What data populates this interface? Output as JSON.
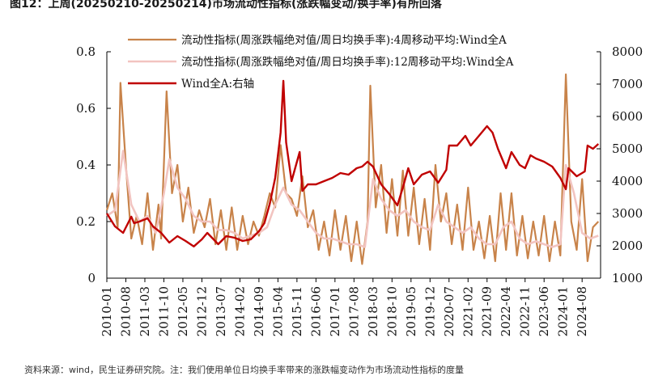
{
  "title": "图12：上周(20250210-20250214)市场流动性指标(涨跌幅变动/换手率)有所回落",
  "source": "资料来源：wind，民生证券研究院。注：我们使用单位日均换手率带来的涨跌幅变动作为市场流动性指标的度量",
  "chart_data": {
    "type": "line",
    "x_tick_labels": [
      "2010-01",
      "2010-08",
      "2011-03",
      "2011-10",
      "2012-05",
      "2012-12",
      "2013-07",
      "2014-02",
      "2014-09",
      "2015-04",
      "2015-11",
      "2016-06",
      "2017-01",
      "2017-08",
      "2018-03",
      "2018-10",
      "2019-05",
      "2019-12",
      "2020-07",
      "2021-02",
      "2021-09",
      "2022-04",
      "2022-11",
      "2023-06",
      "2024-01",
      "2024-08"
    ],
    "left_axis": {
      "ticks": [
        "0",
        "0.2",
        "0.4",
        "0.6",
        "0.8"
      ],
      "ylim": [
        0,
        0.8
      ]
    },
    "right_axis": {
      "ticks": [
        "1000",
        "2000",
        "3000",
        "4000",
        "5000",
        "6000",
        "7000",
        "8000"
      ],
      "ylim": [
        1000,
        8000
      ]
    },
    "legend_position": "top-left",
    "colors": {
      "s4": "#C8834A",
      "s12": "#F2C4C0",
      "wind": "#C00000"
    },
    "series": [
      {
        "name": "流动性指标(周涨跌幅绝对值/周日均换手率):4周移动平均:Wind全A",
        "axis": "left",
        "points": [
          [
            "2010-01",
            0.24
          ],
          [
            "2010-03",
            0.3
          ],
          [
            "2010-05",
            0.18
          ],
          [
            "2010-06",
            0.69
          ],
          [
            "2010-08",
            0.4
          ],
          [
            "2010-10",
            0.14
          ],
          [
            "2010-12",
            0.22
          ],
          [
            "2011-02",
            0.12
          ],
          [
            "2011-04",
            0.3
          ],
          [
            "2011-06",
            0.1
          ],
          [
            "2011-08",
            0.26
          ],
          [
            "2011-09",
            0.14
          ],
          [
            "2011-11",
            0.66
          ],
          [
            "2012-01",
            0.3
          ],
          [
            "2012-03",
            0.4
          ],
          [
            "2012-05",
            0.2
          ],
          [
            "2012-07",
            0.32
          ],
          [
            "2012-09",
            0.16
          ],
          [
            "2012-11",
            0.24
          ],
          [
            "2013-01",
            0.18
          ],
          [
            "2013-03",
            0.28
          ],
          [
            "2013-05",
            0.12
          ],
          [
            "2013-07",
            0.24
          ],
          [
            "2013-09",
            0.1
          ],
          [
            "2013-11",
            0.25
          ],
          [
            "2014-01",
            0.1
          ],
          [
            "2014-03",
            0.22
          ],
          [
            "2014-05",
            0.12
          ],
          [
            "2014-07",
            0.2
          ],
          [
            "2014-09",
            0.15
          ],
          [
            "2014-11",
            0.22
          ],
          [
            "2015-01",
            0.3
          ],
          [
            "2015-03",
            0.25
          ],
          [
            "2015-05",
            0.47
          ],
          [
            "2015-07",
            0.3
          ],
          [
            "2015-09",
            0.28
          ],
          [
            "2015-11",
            0.22
          ],
          [
            "2016-01",
            0.36
          ],
          [
            "2016-03",
            0.18
          ],
          [
            "2016-05",
            0.24
          ],
          [
            "2016-07",
            0.1
          ],
          [
            "2016-09",
            0.2
          ],
          [
            "2016-11",
            0.08
          ],
          [
            "2017-01",
            0.24
          ],
          [
            "2017-03",
            0.1
          ],
          [
            "2017-05",
            0.22
          ],
          [
            "2017-07",
            0.06
          ],
          [
            "2017-09",
            0.2
          ],
          [
            "2017-11",
            0.05
          ],
          [
            "2018-01",
            0.2
          ],
          [
            "2018-02",
            0.68
          ],
          [
            "2018-04",
            0.25
          ],
          [
            "2018-06",
            0.4
          ],
          [
            "2018-08",
            0.16
          ],
          [
            "2018-10",
            0.35
          ],
          [
            "2018-12",
            0.15
          ],
          [
            "2019-02",
            0.38
          ],
          [
            "2019-04",
            0.15
          ],
          [
            "2019-06",
            0.32
          ],
          [
            "2019-08",
            0.12
          ],
          [
            "2019-10",
            0.28
          ],
          [
            "2019-12",
            0.1
          ],
          [
            "2020-02",
            0.4
          ],
          [
            "2020-04",
            0.2
          ],
          [
            "2020-06",
            0.3
          ],
          [
            "2020-08",
            0.12
          ],
          [
            "2020-10",
            0.26
          ],
          [
            "2020-12",
            0.1
          ],
          [
            "2021-02",
            0.32
          ],
          [
            "2021-04",
            0.1
          ],
          [
            "2021-06",
            0.2
          ],
          [
            "2021-08",
            0.07
          ],
          [
            "2021-10",
            0.22
          ],
          [
            "2021-12",
            0.06
          ],
          [
            "2022-02",
            0.3
          ],
          [
            "2022-04",
            0.1
          ],
          [
            "2022-06",
            0.3
          ],
          [
            "2022-08",
            0.08
          ],
          [
            "2022-10",
            0.22
          ],
          [
            "2022-12",
            0.07
          ],
          [
            "2023-02",
            0.2
          ],
          [
            "2023-04",
            0.08
          ],
          [
            "2023-06",
            0.22
          ],
          [
            "2023-08",
            0.06
          ],
          [
            "2023-10",
            0.2
          ],
          [
            "2023-12",
            0.08
          ],
          [
            "2024-02",
            0.72
          ],
          [
            "2024-04",
            0.2
          ],
          [
            "2024-06",
            0.1
          ],
          [
            "2024-08",
            0.35
          ],
          [
            "2024-10",
            0.06
          ],
          [
            "2024-12",
            0.18
          ],
          [
            "2025-02",
            0.2
          ]
        ]
      },
      {
        "name": "流动性指标(周涨跌幅绝对值/周日均换手率):12周移动平均:Wind全A",
        "axis": "left",
        "points": [
          [
            "2010-01",
            0.22
          ],
          [
            "2010-04",
            0.24
          ],
          [
            "2010-07",
            0.45
          ],
          [
            "2010-10",
            0.26
          ],
          [
            "2011-01",
            0.2
          ],
          [
            "2011-04",
            0.22
          ],
          [
            "2011-07",
            0.16
          ],
          [
            "2011-10",
            0.3
          ],
          [
            "2011-12",
            0.42
          ],
          [
            "2012-03",
            0.32
          ],
          [
            "2012-06",
            0.28
          ],
          [
            "2012-09",
            0.22
          ],
          [
            "2012-12",
            0.2
          ],
          [
            "2013-03",
            0.2
          ],
          [
            "2013-06",
            0.17
          ],
          [
            "2013-09",
            0.17
          ],
          [
            "2013-12",
            0.16
          ],
          [
            "2014-03",
            0.14
          ],
          [
            "2014-06",
            0.15
          ],
          [
            "2014-09",
            0.16
          ],
          [
            "2014-12",
            0.18
          ],
          [
            "2015-03",
            0.26
          ],
          [
            "2015-06",
            0.32
          ],
          [
            "2015-09",
            0.26
          ],
          [
            "2015-12",
            0.24
          ],
          [
            "2016-03",
            0.2
          ],
          [
            "2016-06",
            0.16
          ],
          [
            "2016-09",
            0.14
          ],
          [
            "2016-12",
            0.14
          ],
          [
            "2017-03",
            0.13
          ],
          [
            "2017-06",
            0.12
          ],
          [
            "2017-09",
            0.12
          ],
          [
            "2017-12",
            0.11
          ],
          [
            "2018-03",
            0.35
          ],
          [
            "2018-06",
            0.28
          ],
          [
            "2018-09",
            0.24
          ],
          [
            "2018-12",
            0.22
          ],
          [
            "2019-03",
            0.24
          ],
          [
            "2019-06",
            0.2
          ],
          [
            "2019-09",
            0.18
          ],
          [
            "2019-12",
            0.17
          ],
          [
            "2020-03",
            0.26
          ],
          [
            "2020-06",
            0.2
          ],
          [
            "2020-09",
            0.18
          ],
          [
            "2020-12",
            0.16
          ],
          [
            "2021-03",
            0.18
          ],
          [
            "2021-06",
            0.14
          ],
          [
            "2021-09",
            0.12
          ],
          [
            "2021-12",
            0.12
          ],
          [
            "2022-03",
            0.18
          ],
          [
            "2022-06",
            0.2
          ],
          [
            "2022-09",
            0.14
          ],
          [
            "2022-12",
            0.12
          ],
          [
            "2023-03",
            0.13
          ],
          [
            "2023-06",
            0.12
          ],
          [
            "2023-09",
            0.11
          ],
          [
            "2023-12",
            0.12
          ],
          [
            "2024-02",
            0.4
          ],
          [
            "2024-05",
            0.3
          ],
          [
            "2024-08",
            0.16
          ],
          [
            "2024-11",
            0.14
          ],
          [
            "2025-02",
            0.15
          ]
        ]
      },
      {
        "name": "Wind全A:右轴",
        "axis": "right",
        "points": [
          [
            "2010-01",
            3000
          ],
          [
            "2010-04",
            2600
          ],
          [
            "2010-07",
            2400
          ],
          [
            "2010-10",
            2900
          ],
          [
            "2010-11",
            2700
          ],
          [
            "2011-01",
            2750
          ],
          [
            "2011-04",
            2850
          ],
          [
            "2011-06",
            2600
          ],
          [
            "2011-09",
            2400
          ],
          [
            "2011-12",
            2100
          ],
          [
            "2012-03",
            2300
          ],
          [
            "2012-06",
            2150
          ],
          [
            "2012-09",
            1980
          ],
          [
            "2012-12",
            2200
          ],
          [
            "2013-02",
            2400
          ],
          [
            "2013-06",
            2050
          ],
          [
            "2013-09",
            2300
          ],
          [
            "2013-12",
            2250
          ],
          [
            "2014-03",
            2150
          ],
          [
            "2014-06",
            2200
          ],
          [
            "2014-09",
            2450
          ],
          [
            "2014-11",
            2700
          ],
          [
            "2015-01",
            3300
          ],
          [
            "2015-03",
            4100
          ],
          [
            "2015-05",
            5500
          ],
          [
            "2015-06",
            7100
          ],
          [
            "2015-07",
            5200
          ],
          [
            "2015-09",
            4000
          ],
          [
            "2015-12",
            4900
          ],
          [
            "2016-01",
            3700
          ],
          [
            "2016-03",
            3900
          ],
          [
            "2016-06",
            3900
          ],
          [
            "2016-09",
            4000
          ],
          [
            "2016-12",
            4100
          ],
          [
            "2017-03",
            4250
          ],
          [
            "2017-06",
            4200
          ],
          [
            "2017-09",
            4400
          ],
          [
            "2017-11",
            4450
          ],
          [
            "2018-01",
            4600
          ],
          [
            "2018-03",
            4450
          ],
          [
            "2018-06",
            3900
          ],
          [
            "2018-09",
            3600
          ],
          [
            "2018-12",
            3250
          ],
          [
            "2019-02",
            3800
          ],
          [
            "2019-04",
            4400
          ],
          [
            "2019-06",
            3900
          ],
          [
            "2019-09",
            4200
          ],
          [
            "2019-12",
            4300
          ],
          [
            "2020-03",
            3950
          ],
          [
            "2020-06",
            4350
          ],
          [
            "2020-07",
            5100
          ],
          [
            "2020-10",
            5100
          ],
          [
            "2021-01",
            5400
          ],
          [
            "2021-03",
            5100
          ],
          [
            "2021-06",
            5400
          ],
          [
            "2021-09",
            5700
          ],
          [
            "2021-11",
            5500
          ],
          [
            "2022-01",
            5000
          ],
          [
            "2022-04",
            4400
          ],
          [
            "2022-06",
            4900
          ],
          [
            "2022-09",
            4500
          ],
          [
            "2022-11",
            4400
          ],
          [
            "2023-01",
            4800
          ],
          [
            "2023-03",
            4700
          ],
          [
            "2023-06",
            4600
          ],
          [
            "2023-09",
            4450
          ],
          [
            "2023-12",
            4100
          ],
          [
            "2024-02",
            3750
          ],
          [
            "2024-03",
            4400
          ],
          [
            "2024-06",
            4150
          ],
          [
            "2024-09",
            4300
          ],
          [
            "2024-10",
            5100
          ],
          [
            "2024-12",
            5000
          ],
          [
            "2025-02",
            5150
          ]
        ]
      }
    ]
  }
}
